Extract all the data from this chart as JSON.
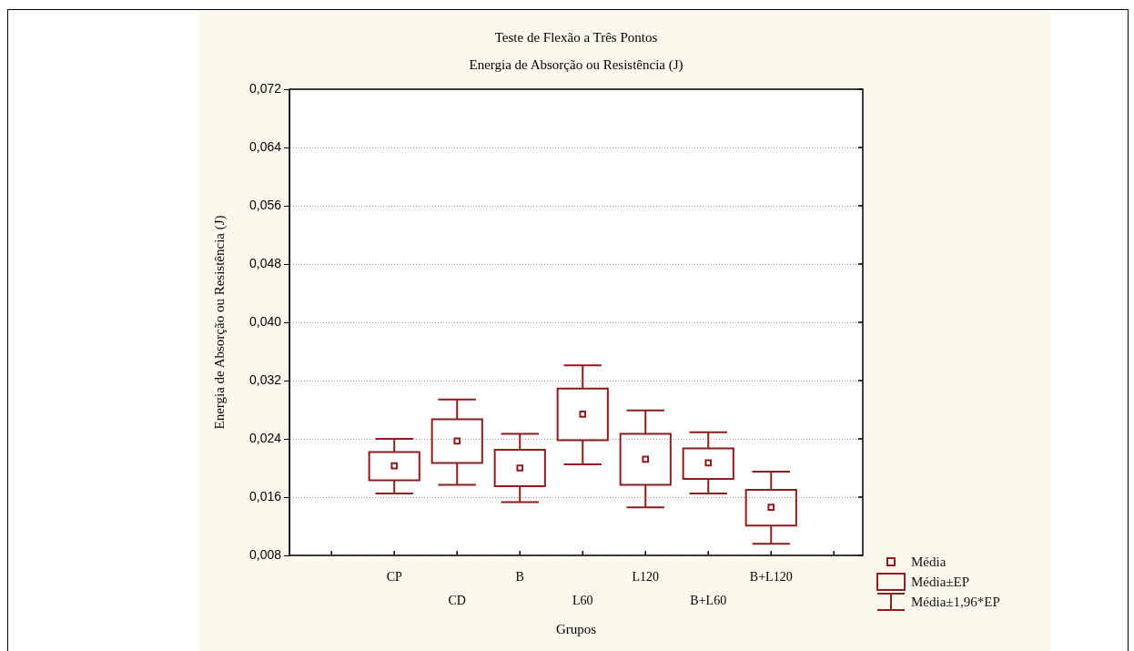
{
  "chart_data": {
    "type": "box",
    "title": "Teste de Flexão a Três Pontos",
    "subtitle": "Energia de Absorção ou Resistência (J)",
    "xlabel": "Grupos",
    "ylabel": "Energia de Absorção ou Resistência (J)",
    "categories": [
      "CP",
      "CD",
      "B",
      "L60",
      "L120",
      "B+L60",
      "B+L120"
    ],
    "color": "#8b1f1f",
    "boxes": [
      {
        "low": 0.0165,
        "q1": 0.0183,
        "median": 0.0203,
        "q3": 0.0222,
        "high": 0.024
      },
      {
        "low": 0.0177,
        "q1": 0.0207,
        "median": 0.0237,
        "q3": 0.0267,
        "high": 0.0294
      },
      {
        "low": 0.0153,
        "q1": 0.0175,
        "median": 0.02,
        "q3": 0.0225,
        "high": 0.0247
      },
      {
        "low": 0.0205,
        "q1": 0.0238,
        "median": 0.0274,
        "q3": 0.0309,
        "high": 0.0341
      },
      {
        "low": 0.0146,
        "q1": 0.0177,
        "median": 0.0212,
        "q3": 0.0247,
        "high": 0.0279
      },
      {
        "low": 0.0165,
        "q1": 0.0185,
        "median": 0.0207,
        "q3": 0.0227,
        "high": 0.0249
      },
      {
        "low": 0.0096,
        "q1": 0.0121,
        "median": 0.0146,
        "q3": 0.017,
        "high": 0.0195
      }
    ],
    "ylim": [
      0.008,
      0.072
    ],
    "yticks": [
      {
        "value": 0.008,
        "label": "0,008"
      },
      {
        "value": 0.016,
        "label": "0,016"
      },
      {
        "value": 0.024,
        "label": "0,024"
      },
      {
        "value": 0.032,
        "label": "0,032"
      },
      {
        "value": 0.04,
        "label": "0,040"
      },
      {
        "value": 0.048,
        "label": "0,048"
      },
      {
        "value": 0.056,
        "label": "0,056"
      },
      {
        "value": 0.064,
        "label": "0,064"
      },
      {
        "value": 0.072,
        "label": "0,072"
      }
    ],
    "grid": "y",
    "marker": "square",
    "annotations": [
      "Média",
      "Média±EP",
      "Média±1,96*EP"
    ]
  }
}
